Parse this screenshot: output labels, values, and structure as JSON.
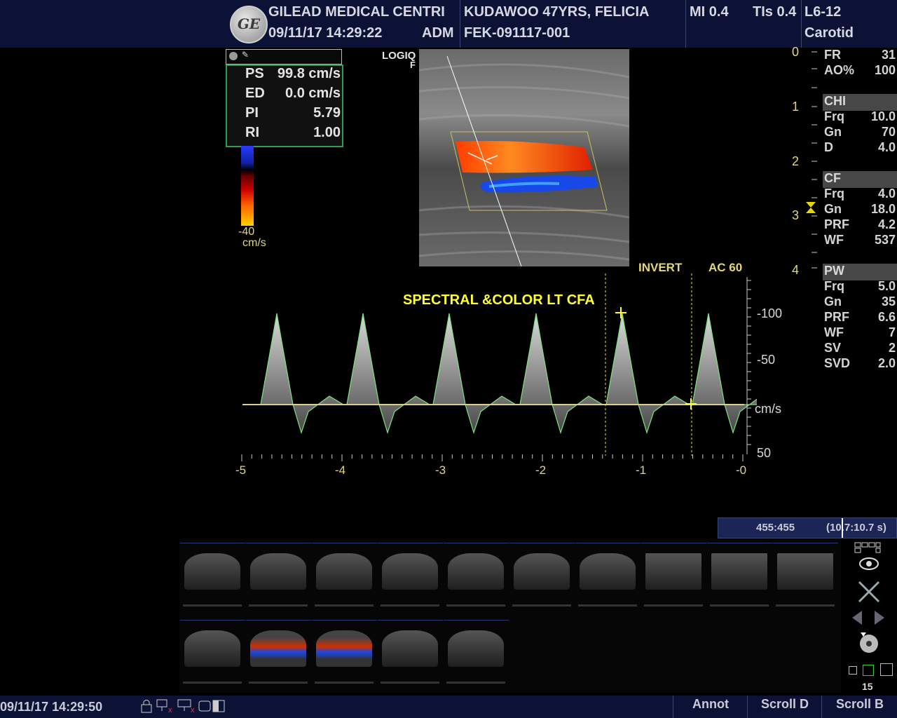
{
  "header": {
    "logo_text": "GE",
    "institution": "GILEAD MEDICAL CENTRI",
    "datetime": "09/11/17 14:29:22",
    "operator": "ADM",
    "patient": "KUDAWOO 47YRS, FELICIA",
    "patient_id": "FEK-091117-001",
    "mi": "MI 0.4",
    "tis": "TIs 0.4",
    "probe": "L6-12",
    "preset": "Carotid"
  },
  "image_label": {
    "line1": "LOGIQ",
    "line2": "F"
  },
  "measurements": [
    {
      "label": "PS",
      "value": "99.8 cm/s"
    },
    {
      "label": "ED",
      "value": "0.0 cm/s"
    },
    {
      "label": "PI",
      "value": "5.79"
    },
    {
      "label": "RI",
      "value": "1.00"
    }
  ],
  "color_bar": {
    "min": "-40",
    "unit": "cm/s"
  },
  "depth_scale": [
    "0",
    "1",
    "2",
    "3",
    "4"
  ],
  "params": {
    "general": [
      {
        "label": "FR",
        "value": "31"
      },
      {
        "label": "AO%",
        "value": "100"
      }
    ],
    "chi": {
      "title": "CHI",
      "items": [
        {
          "label": "Frq",
          "value": "10.0"
        },
        {
          "label": "Gn",
          "value": "70"
        },
        {
          "label": "D",
          "value": "4.0"
        }
      ]
    },
    "cf": {
      "title": "CF",
      "items": [
        {
          "label": "Frq",
          "value": "4.0"
        },
        {
          "label": "Gn",
          "value": "18.0"
        },
        {
          "label": "PRF",
          "value": "4.2"
        },
        {
          "label": "WF",
          "value": "537"
        }
      ]
    },
    "pw": {
      "title": "PW",
      "items": [
        {
          "label": "Frq",
          "value": "5.0"
        },
        {
          "label": "Gn",
          "value": "35"
        },
        {
          "label": "PRF",
          "value": "6.6"
        },
        {
          "label": "WF",
          "value": "7"
        },
        {
          "label": "SV",
          "value": "2"
        },
        {
          "label": "SVD",
          "value": "2.0"
        }
      ]
    }
  },
  "spectral": {
    "invert_label": "INVERT",
    "ac_label": "AC 60",
    "annotation": "SPECTRAL &COLOR LT CFA",
    "unit": "cm/s",
    "y_ticks": [
      "-100",
      "-50",
      "50"
    ],
    "x_ticks": [
      "-5",
      "-4",
      "-3",
      "-2",
      "-1",
      "-0"
    ]
  },
  "cine": {
    "frames": "455:455",
    "time": "(10.7:10.7 s)"
  },
  "page_count": "15",
  "status": {
    "datetime": "09/11/17 14:29:50",
    "annot": "Annot",
    "scroll_d": "Scroll D",
    "scroll_b": "Scroll B"
  },
  "colors": {
    "header_bg": "#0b1236",
    "accent_yellow": "#ffff33",
    "trace_green": "#7fe07f",
    "box_green": "#2e9a52"
  }
}
